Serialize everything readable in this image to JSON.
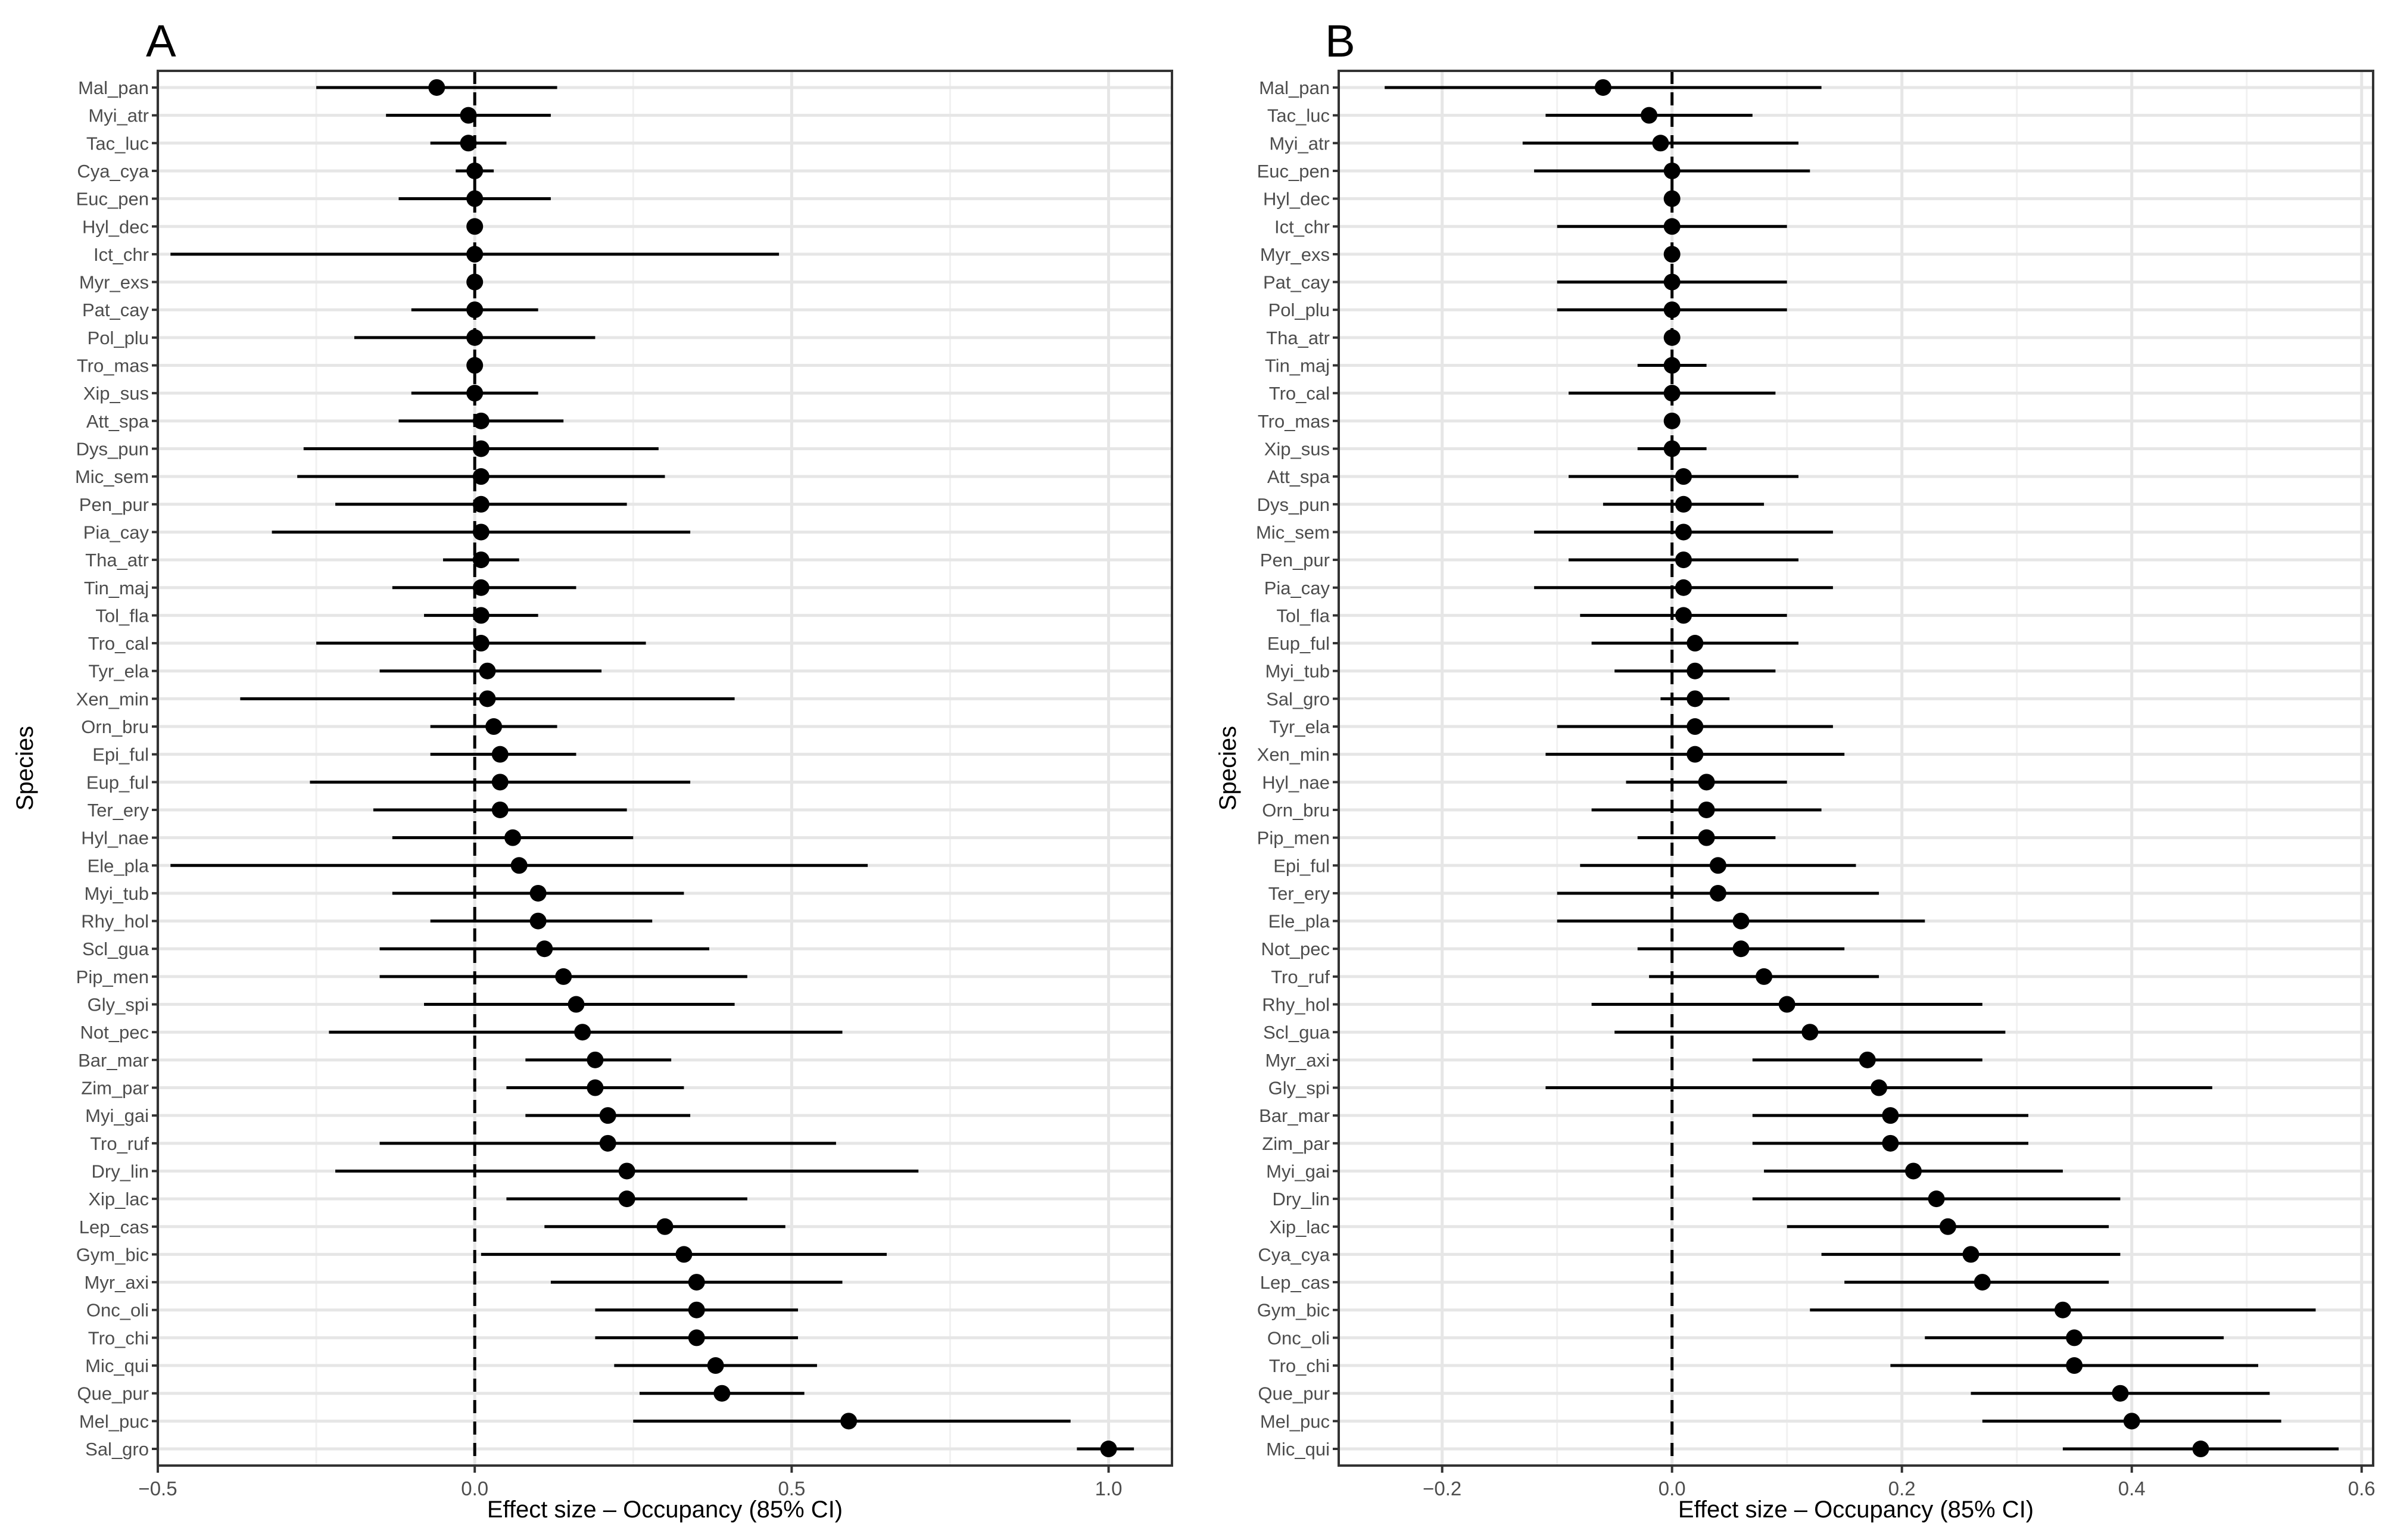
{
  "chart_data": [
    {
      "panel_label": "A",
      "type": "scatter",
      "xlabel": "Effect size – Occupancy (85% CI)",
      "ylabel": "Species",
      "xlim": [
        -0.5,
        1.1
      ],
      "xticks": [
        -0.5,
        0.0,
        0.5,
        1.0
      ],
      "xtick_labels": [
        "−0.5",
        "0.0",
        "0.5",
        "1.0"
      ],
      "grid": true,
      "reference_line_x": 0,
      "species": [
        "Mal_pan",
        "Myi_atr",
        "Tac_luc",
        "Cya_cya",
        "Euc_pen",
        "Hyl_dec",
        "Ict_chr",
        "Myr_exs",
        "Pat_cay",
        "Pol_plu",
        "Tro_mas",
        "Xip_sus",
        "Att_spa",
        "Dys_pun",
        "Mic_sem",
        "Pen_pur",
        "Pia_cay",
        "Tha_atr",
        "Tin_maj",
        "Tol_fla",
        "Tro_cal",
        "Tyr_ela",
        "Xen_min",
        "Orn_bru",
        "Epi_ful",
        "Eup_ful",
        "Ter_ery",
        "Hyl_nae",
        "Ele_pla",
        "Myi_tub",
        "Rhy_hol",
        "Scl_gua",
        "Pip_men",
        "Gly_spi",
        "Not_pec",
        "Bar_mar",
        "Zim_par",
        "Myi_gai",
        "Tro_ruf",
        "Dry_lin",
        "Xip_lac",
        "Lep_cas",
        "Gym_bic",
        "Myr_axi",
        "Onc_oli",
        "Tro_chi",
        "Mic_qui",
        "Que_pur",
        "Mel_puc",
        "Sal_gro"
      ],
      "estimate": [
        -0.06,
        -0.01,
        -0.01,
        0,
        0,
        0,
        0,
        0,
        0,
        0,
        0,
        0,
        0.01,
        0.01,
        0.01,
        0.01,
        0.01,
        0.01,
        0.01,
        0.01,
        0.01,
        0.02,
        0.02,
        0.03,
        0.04,
        0.04,
        0.04,
        0.06,
        0.07,
        0.1,
        0.1,
        0.11,
        0.14,
        0.16,
        0.17,
        0.19,
        0.19,
        0.21,
        0.21,
        0.24,
        0.24,
        0.3,
        0.33,
        0.35,
        0.35,
        0.35,
        0.38,
        0.39,
        0.59,
        1.0
      ],
      "lower": [
        -0.25,
        -0.14,
        -0.07,
        -0.03,
        -0.12,
        -0.01,
        -0.48,
        -0.01,
        -0.1,
        -0.19,
        -0.01,
        -0.1,
        -0.12,
        -0.27,
        -0.28,
        -0.22,
        -0.32,
        -0.05,
        -0.13,
        -0.08,
        -0.25,
        -0.15,
        -0.37,
        -0.07,
        -0.07,
        -0.26,
        -0.16,
        -0.13,
        -0.48,
        -0.13,
        -0.07,
        -0.15,
        -0.15,
        -0.08,
        -0.23,
        0.08,
        0.05,
        0.08,
        -0.15,
        -0.22,
        0.05,
        0.11,
        0.01,
        0.12,
        0.19,
        0.19,
        0.22,
        0.26,
        0.25,
        0.95
      ],
      "upper": [
        0.13,
        0.12,
        0.05,
        0.03,
        0.12,
        0.01,
        0.48,
        0.01,
        0.1,
        0.19,
        0.01,
        0.1,
        0.14,
        0.29,
        0.3,
        0.24,
        0.34,
        0.07,
        0.16,
        0.1,
        0.27,
        0.2,
        0.41,
        0.13,
        0.16,
        0.34,
        0.24,
        0.25,
        0.62,
        0.33,
        0.28,
        0.37,
        0.43,
        0.41,
        0.58,
        0.31,
        0.33,
        0.34,
        0.57,
        0.7,
        0.43,
        0.49,
        0.65,
        0.58,
        0.51,
        0.51,
        0.54,
        0.52,
        0.94,
        1.04
      ]
    },
    {
      "panel_label": "B",
      "type": "scatter",
      "xlabel": "Effect size – Occupancy (85% CI)",
      "ylabel": "Species",
      "xlim": [
        -0.29,
        0.61
      ],
      "xticks": [
        -0.2,
        0.0,
        0.2,
        0.4,
        0.6
      ],
      "xtick_labels": [
        "−0.2",
        "0.0",
        "0.2",
        "0.4",
        "0.6"
      ],
      "grid": true,
      "reference_line_x": 0,
      "species": [
        "Mal_pan",
        "Tac_luc",
        "Myi_atr",
        "Euc_pen",
        "Hyl_dec",
        "Ict_chr",
        "Myr_exs",
        "Pat_cay",
        "Pol_plu",
        "Tha_atr",
        "Tin_maj",
        "Tro_cal",
        "Tro_mas",
        "Xip_sus",
        "Att_spa",
        "Dys_pun",
        "Mic_sem",
        "Pen_pur",
        "Pia_cay",
        "Tol_fla",
        "Eup_ful",
        "Myi_tub",
        "Sal_gro",
        "Tyr_ela",
        "Xen_min",
        "Hyl_nae",
        "Orn_bru",
        "Pip_men",
        "Epi_ful",
        "Ter_ery",
        "Ele_pla",
        "Not_pec",
        "Tro_ruf",
        "Rhy_hol",
        "Scl_gua",
        "Myr_axi",
        "Gly_spi",
        "Bar_mar",
        "Zim_par",
        "Myi_gai",
        "Dry_lin",
        "Xip_lac",
        "Cya_cya",
        "Lep_cas",
        "Gym_bic",
        "Onc_oli",
        "Tro_chi",
        "Que_pur",
        "Mel_puc",
        "Mic_qui"
      ],
      "estimate": [
        -0.06,
        -0.02,
        -0.01,
        0,
        0,
        0,
        0,
        0,
        0,
        0,
        0,
        0,
        0,
        0,
        0.01,
        0.01,
        0.01,
        0.01,
        0.01,
        0.01,
        0.02,
        0.02,
        0.02,
        0.02,
        0.02,
        0.03,
        0.03,
        0.03,
        0.04,
        0.04,
        0.06,
        0.06,
        0.08,
        0.1,
        0.12,
        0.17,
        0.18,
        0.19,
        0.19,
        0.21,
        0.23,
        0.24,
        0.26,
        0.27,
        0.34,
        0.35,
        0.35,
        0.39,
        0.4,
        0.46
      ],
      "lower": [
        -0.25,
        -0.11,
        -0.13,
        -0.12,
        -0.005,
        -0.1,
        -0.005,
        -0.1,
        -0.1,
        -0.005,
        -0.03,
        -0.09,
        -0.005,
        -0.03,
        -0.09,
        -0.06,
        -0.12,
        -0.09,
        -0.12,
        -0.08,
        -0.07,
        -0.05,
        -0.01,
        -0.1,
        -0.11,
        -0.04,
        -0.07,
        -0.03,
        -0.08,
        -0.1,
        -0.1,
        -0.03,
        -0.02,
        -0.07,
        -0.05,
        0.07,
        -0.11,
        0.07,
        0.07,
        0.08,
        0.07,
        0.1,
        0.13,
        0.15,
        0.12,
        0.22,
        0.19,
        0.26,
        0.27,
        0.34
      ],
      "upper": [
        0.13,
        0.07,
        0.11,
        0.12,
        0.005,
        0.1,
        0.005,
        0.1,
        0.1,
        0.005,
        0.03,
        0.09,
        0.005,
        0.03,
        0.11,
        0.08,
        0.14,
        0.11,
        0.14,
        0.1,
        0.11,
        0.09,
        0.05,
        0.14,
        0.15,
        0.1,
        0.13,
        0.09,
        0.16,
        0.18,
        0.22,
        0.15,
        0.18,
        0.27,
        0.29,
        0.27,
        0.47,
        0.31,
        0.31,
        0.34,
        0.39,
        0.38,
        0.39,
        0.38,
        0.56,
        0.48,
        0.51,
        0.52,
        0.53,
        0.58
      ]
    }
  ]
}
